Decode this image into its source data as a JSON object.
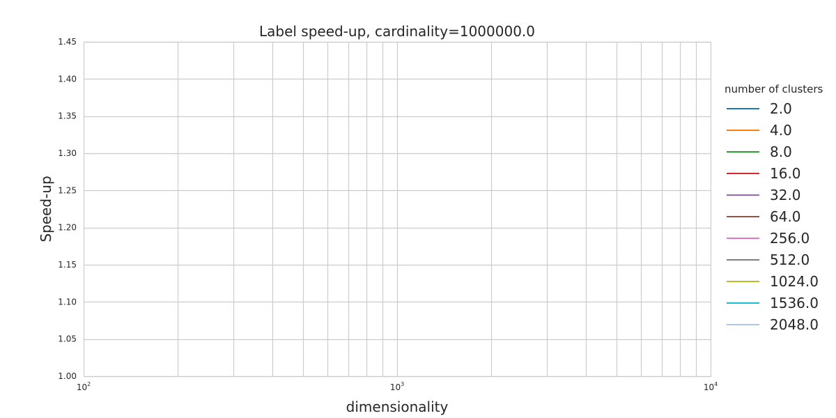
{
  "chart_data": {
    "type": "line",
    "title": "Label speed-up, cardinality=1000000.0",
    "xlabel": "dimensionality",
    "ylabel": "Speed-up",
    "xscale": "log",
    "xlim": [
      100,
      10000
    ],
    "ylim": [
      1.0,
      1.45
    ],
    "x_ticks": [
      {
        "value": 100,
        "base": "10",
        "exp": "2"
      },
      {
        "value": 1000,
        "base": "10",
        "exp": "3"
      },
      {
        "value": 10000,
        "base": "10",
        "exp": "4"
      }
    ],
    "y_ticks": [
      "1.00",
      "1.05",
      "1.10",
      "1.15",
      "1.20",
      "1.25",
      "1.30",
      "1.35",
      "1.40",
      "1.45"
    ],
    "grid": true,
    "legend": {
      "title": "number of clusters",
      "placement": "right, outside plot"
    },
    "series": [
      {
        "name": "2.0",
        "color": "#1f77b4",
        "x": [],
        "y": []
      },
      {
        "name": "4.0",
        "color": "#ff7f0e",
        "x": [],
        "y": []
      },
      {
        "name": "8.0",
        "color": "#2ca02c",
        "x": [],
        "y": []
      },
      {
        "name": "16.0",
        "color": "#d62728",
        "x": [],
        "y": []
      },
      {
        "name": "32.0",
        "color": "#9467bd",
        "x": [],
        "y": []
      },
      {
        "name": "64.0",
        "color": "#8c564b",
        "x": [],
        "y": []
      },
      {
        "name": "256.0",
        "color": "#e377c2",
        "x": [],
        "y": []
      },
      {
        "name": "512.0",
        "color": "#7f7f7f",
        "x": [],
        "y": []
      },
      {
        "name": "1024.0",
        "color": "#bcbd22",
        "x": [],
        "y": []
      },
      {
        "name": "1536.0",
        "color": "#17becf",
        "x": [],
        "y": []
      },
      {
        "name": "2048.0",
        "color": "#aec7e8",
        "x": [],
        "y": []
      }
    ]
  }
}
